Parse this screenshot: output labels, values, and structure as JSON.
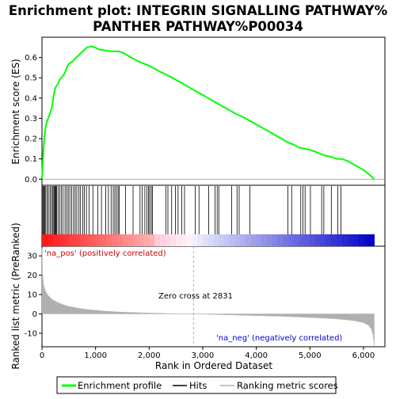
{
  "chart_data": {
    "type": "line",
    "title": "Enrichment plot: INTEGRIN SIGNALLING PATHWAY%\nPANTHER PATHWAY%P00034",
    "title_lines": [
      "Enrichment plot: INTEGRIN SIGNALLING PATHWAY%",
      "PANTHER PATHWAY%P00034"
    ],
    "es_panel": {
      "ylabel": "Enrichment score (ES)",
      "ylim": [
        -0.03,
        0.7
      ],
      "yticks": [
        0.0,
        0.1,
        0.2,
        0.3,
        0.4,
        0.5,
        0.6
      ],
      "ytick_labels": [
        "0.0",
        "0.1",
        "0.2",
        "0.3",
        "0.4",
        "0.5",
        "0.6"
      ],
      "series_name": "Enrichment profile",
      "color": "#00ff00",
      "x": [
        0,
        15,
        30,
        45,
        60,
        80,
        100,
        130,
        160,
        190,
        210,
        230,
        250,
        270,
        300,
        330,
        360,
        390,
        420,
        450,
        480,
        510,
        540,
        570,
        600,
        640,
        680,
        720,
        760,
        800,
        840,
        880,
        920,
        960,
        1000,
        1050,
        1100,
        1150,
        1200,
        1250,
        1300,
        1350,
        1400,
        1450,
        1500,
        1600,
        1700,
        1800,
        1900,
        2000,
        2100,
        2200,
        2300,
        2400,
        2500,
        2600,
        2700,
        2831,
        3000,
        3200,
        3400,
        3600,
        3800,
        4000,
        4200,
        4400,
        4600,
        4700,
        4800,
        4900,
        5000,
        5100,
        5200,
        5300,
        5400,
        5500,
        5600,
        5700,
        5800,
        5900,
        6000,
        6100,
        6200
      ],
      "y": [
        0.0,
        0.08,
        0.15,
        0.2,
        0.24,
        0.27,
        0.29,
        0.31,
        0.33,
        0.36,
        0.4,
        0.43,
        0.45,
        0.46,
        0.47,
        0.49,
        0.5,
        0.51,
        0.52,
        0.54,
        0.56,
        0.57,
        0.575,
        0.58,
        0.59,
        0.6,
        0.61,
        0.62,
        0.63,
        0.64,
        0.65,
        0.652,
        0.655,
        0.652,
        0.648,
        0.642,
        0.638,
        0.636,
        0.634,
        0.632,
        0.631,
        0.63,
        0.63,
        0.629,
        0.625,
        0.61,
        0.595,
        0.58,
        0.57,
        0.56,
        0.545,
        0.53,
        0.518,
        0.505,
        0.49,
        0.475,
        0.46,
        0.44,
        0.415,
        0.385,
        0.355,
        0.325,
        0.3,
        0.27,
        0.24,
        0.21,
        0.18,
        0.17,
        0.155,
        0.15,
        0.145,
        0.135,
        0.125,
        0.115,
        0.11,
        0.1,
        0.1,
        0.09,
        0.075,
        0.06,
        0.045,
        0.025,
        0.0
      ]
    },
    "hits": {
      "series_name": "Hits",
      "positions": [
        5,
        20,
        35,
        50,
        70,
        95,
        120,
        150,
        175,
        200,
        220,
        235,
        250,
        260,
        275,
        300,
        330,
        360,
        390,
        430,
        460,
        490,
        520,
        555,
        590,
        620,
        650,
        690,
        720,
        760,
        790,
        830,
        880,
        950,
        1040,
        1110,
        1190,
        1240,
        1290,
        1330,
        1360,
        1390,
        1420,
        1440,
        1560,
        1700,
        1830,
        1870,
        1920,
        1960,
        1990,
        2010,
        2040,
        2060,
        2310,
        2350,
        2420,
        2490,
        2540,
        2610,
        2660,
        2860,
        2930,
        3110,
        3230,
        3270,
        3300,
        3540,
        3640,
        3680,
        3880,
        4590,
        4660,
        4830,
        4870,
        4910,
        5010,
        5220,
        5260,
        5400,
        5520,
        5580
      ]
    },
    "metric_panel": {
      "series_name": "Ranking metric scores",
      "ylabel": "Ranked list metric (PreRanked)",
      "ylim": [
        -17,
        35
      ],
      "yticks": [
        -10,
        0,
        10,
        20,
        30
      ],
      "ytick_labels": [
        "-10",
        "0",
        "10",
        "20",
        "30"
      ],
      "color": "#b0b0b0",
      "rank": [
        0,
        10,
        30,
        60,
        100,
        150,
        200,
        300,
        400,
        500,
        700,
        900,
        1200,
        1500,
        1800,
        2100,
        2400,
        2831,
        3200,
        3600,
        4000,
        4400,
        4800,
        5200,
        5500,
        5800,
        6000,
        6100,
        6150,
        6180,
        6200
      ],
      "value": [
        34,
        21,
        15,
        12,
        10,
        8.5,
        7.3,
        5.8,
        4.7,
        3.9,
        2.8,
        2.1,
        1.4,
        0.9,
        0.6,
        0.35,
        0.15,
        0.0,
        -0.3,
        -0.6,
        -0.9,
        -1.2,
        -1.6,
        -2.1,
        -2.6,
        -3.4,
        -4.5,
        -6.0,
        -8.0,
        -11.0,
        -16.5
      ]
    },
    "zero_cross_label": "Zero cross at 2831",
    "zero_cross": 2831,
    "pos_label": "'na_pos' (positively correlated)",
    "neg_label": "'na_neg' (negatively correlated)",
    "xlabel": "Rank in Ordered Dataset",
    "xlim": [
      0,
      6400
    ],
    "xticks": [
      0,
      1000,
      2000,
      3000,
      4000,
      5000,
      6000
    ],
    "xtick_labels": [
      "0",
      "1,000",
      "2,000",
      "3,000",
      "4,000",
      "5,000",
      "6,000"
    ],
    "n_genes": 6200,
    "legend": {
      "placement": "bottom",
      "entries": [
        {
          "label": "Enrichment profile",
          "color": "#00ff00"
        },
        {
          "label": "Hits",
          "color": "#000000"
        },
        {
          "label": "Ranking metric scores",
          "color": "#b0b0b0"
        }
      ]
    }
  }
}
